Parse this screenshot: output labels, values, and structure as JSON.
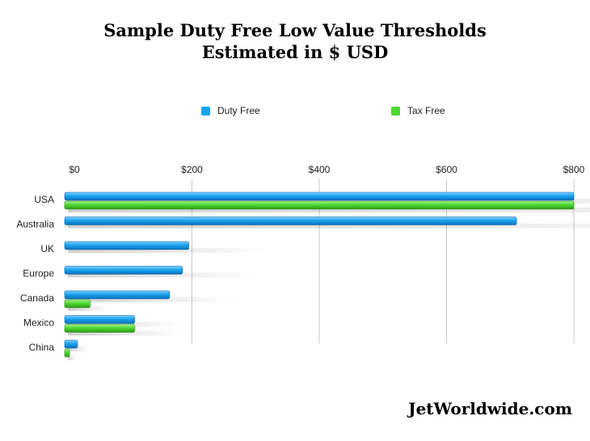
{
  "title_line1": "Sample Duty Free Low Value Thresholds",
  "title_line2": "Estimated in $ USD",
  "brand": "JetWorldwide.com",
  "colors": {
    "duty_free": "#1aa3f0",
    "tax_free": "#4ed832",
    "grid": "#c8c8c8"
  },
  "chart_data": {
    "type": "bar",
    "orientation": "horizontal",
    "categories": [
      "USA",
      "Australia",
      "UK",
      "Europe",
      "Canada",
      "Mexico",
      "China"
    ],
    "series": [
      {
        "name": "Duty Free",
        "values": [
          800,
          710,
          195,
          185,
          165,
          110,
          20
        ]
      },
      {
        "name": "Tax Free",
        "values": [
          800,
          null,
          null,
          null,
          40,
          110,
          5
        ]
      }
    ],
    "x_ticks": [
      "$0",
      "$200",
      "$400",
      "$600",
      "$800"
    ],
    "x_tick_values": [
      0,
      200,
      400,
      600,
      800
    ],
    "xlim": [
      0,
      800
    ],
    "grid": true,
    "legend_position": "top"
  }
}
